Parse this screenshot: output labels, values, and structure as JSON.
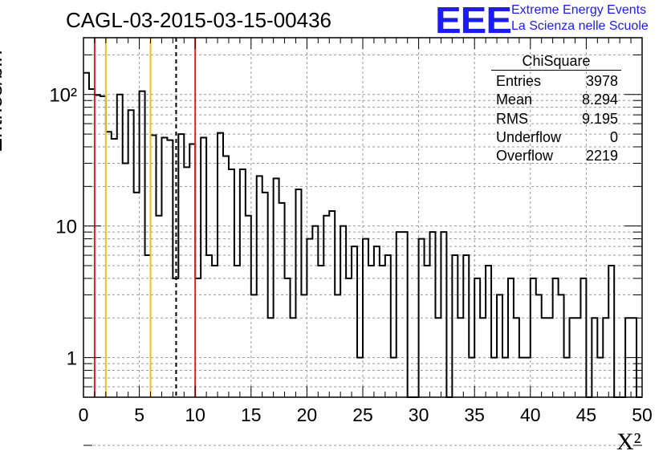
{
  "title": "CAGL-03-2015-03-15-00436",
  "logo": {
    "mark": "EEE",
    "line1": "Extreme Energy Events",
    "line2": "La Scienza nelle Scuole",
    "color": "#1a1aff"
  },
  "stats": {
    "name": "ChiSquare",
    "rows": [
      {
        "label": "Entries",
        "value": "3978"
      },
      {
        "label": "Mean",
        "value": "8.294"
      },
      {
        "label": "RMS",
        "value": "9.195"
      },
      {
        "label": "Underflow",
        "value": "0"
      },
      {
        "label": "Overflow",
        "value": "2219"
      }
    ]
  },
  "chart_data": {
    "type": "histogram",
    "title": "CAGL-03-2015-03-15-00436",
    "xlabel": "X²",
    "ylabel": "Entries/bin",
    "xlim": [
      0,
      50
    ],
    "ylim": [
      0.5,
      270
    ],
    "yscale": "log",
    "grid": true,
    "bin_width": 0.5,
    "x_ticks": [
      0,
      5,
      10,
      15,
      20,
      25,
      30,
      35,
      40,
      45,
      50
    ],
    "y_tick_labels": [
      {
        "value": 1,
        "label": "1"
      },
      {
        "value": 10,
        "label": "10"
      },
      {
        "value": 100,
        "label": "10²"
      }
    ],
    "counts": [
      146,
      110,
      99,
      97,
      52,
      46,
      100,
      30,
      76,
      18,
      106,
      6,
      49,
      12,
      47,
      45,
      4,
      50,
      28,
      42,
      4,
      47,
      6,
      5,
      51,
      34,
      27,
      5,
      27,
      12,
      3,
      24,
      18,
      2,
      23,
      15,
      4,
      2,
      19,
      3,
      8,
      10,
      5,
      12,
      13,
      3,
      10,
      4,
      7,
      1,
      8,
      5,
      7,
      5,
      6,
      1,
      9,
      9,
      0,
      0,
      8,
      5,
      9,
      2,
      9,
      0,
      6,
      2,
      6,
      1,
      4,
      2,
      5,
      1,
      3,
      1,
      4,
      2,
      1,
      1,
      4,
      3,
      2,
      2,
      4,
      3,
      1,
      2,
      2,
      4,
      0,
      2,
      1,
      2,
      5,
      0,
      0,
      2,
      2,
      0
    ],
    "vertical_lines": [
      {
        "x": 1,
        "color": "#e02020",
        "style": "solid"
      },
      {
        "x": 2,
        "color": "#f0c020",
        "style": "solid"
      },
      {
        "x": 6,
        "color": "#f0c020",
        "style": "solid"
      },
      {
        "x": 8.294,
        "color": "#000000",
        "style": "dashed"
      },
      {
        "x": 10,
        "color": "#e02020",
        "style": "solid"
      }
    ],
    "line_color": "#000000"
  }
}
